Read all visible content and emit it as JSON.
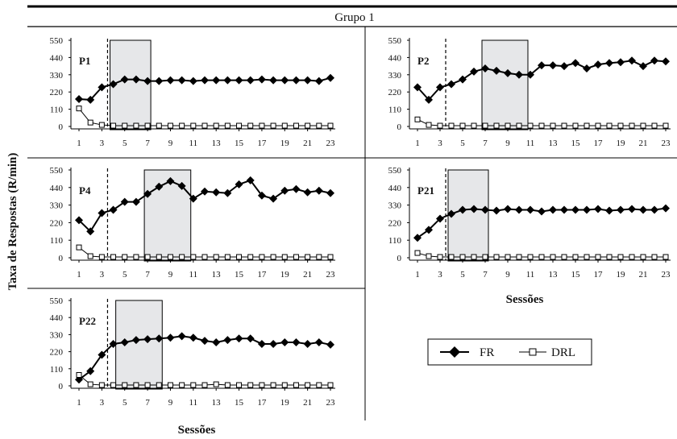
{
  "figure_title": "Grupo 1",
  "ylabel": "Taxa de Respostas (R/min)",
  "xlabel": "Sessões",
  "legend": [
    {
      "name": "FR",
      "marker": "filled-diamond"
    },
    {
      "name": "DRL",
      "marker": "open-square"
    }
  ],
  "colors": {
    "line": "#000000",
    "shade": "#e6e7e9",
    "background": "#ffffff"
  },
  "chart_data": [
    {
      "type": "line",
      "panel": "P1",
      "x": [
        1,
        2,
        3,
        4,
        5,
        6,
        7,
        8,
        9,
        10,
        11,
        12,
        13,
        14,
        15,
        16,
        17,
        18,
        19,
        20,
        21,
        22,
        23
      ],
      "xticks": [
        1,
        3,
        5,
        7,
        9,
        11,
        13,
        15,
        17,
        19,
        21,
        23
      ],
      "yticks": [
        0,
        110,
        220,
        330,
        440,
        550
      ],
      "ylim": [
        0,
        550
      ],
      "phase_line_after_session": 3.5,
      "shaded_sessions": [
        4,
        7
      ],
      "series": [
        {
          "name": "FR",
          "values": [
            175,
            170,
            250,
            270,
            300,
            300,
            290,
            290,
            295,
            295,
            290,
            295,
            295,
            295,
            295,
            295,
            300,
            295,
            295,
            295,
            295,
            290,
            310
          ]
        },
        {
          "name": "DRL",
          "values": [
            115,
            25,
            10,
            5,
            5,
            5,
            5,
            5,
            5,
            5,
            5,
            5,
            5,
            5,
            5,
            5,
            5,
            5,
            5,
            5,
            5,
            5,
            5
          ]
        }
      ]
    },
    {
      "type": "line",
      "panel": "P2",
      "x": [
        1,
        2,
        3,
        4,
        5,
        6,
        7,
        8,
        9,
        10,
        11,
        12,
        13,
        14,
        15,
        16,
        17,
        18,
        19,
        20,
        21,
        22,
        23
      ],
      "xticks": [
        1,
        3,
        5,
        7,
        9,
        11,
        13,
        15,
        17,
        19,
        21,
        23
      ],
      "yticks": [
        0,
        110,
        220,
        330,
        440,
        550
      ],
      "ylim": [
        0,
        550
      ],
      "phase_line_after_session": 3.5,
      "shaded_sessions": [
        7,
        10.5
      ],
      "series": [
        {
          "name": "FR",
          "values": [
            250,
            170,
            250,
            270,
            300,
            350,
            370,
            355,
            340,
            330,
            330,
            390,
            390,
            385,
            405,
            370,
            395,
            405,
            410,
            420,
            385,
            420,
            415
          ]
        },
        {
          "name": "DRL",
          "values": [
            45,
            10,
            5,
            5,
            5,
            5,
            5,
            5,
            5,
            5,
            5,
            5,
            5,
            5,
            5,
            5,
            5,
            5,
            5,
            5,
            5,
            5,
            5
          ]
        }
      ]
    },
    {
      "type": "line",
      "panel": "P4",
      "x": [
        1,
        2,
        3,
        4,
        5,
        6,
        7,
        8,
        9,
        10,
        11,
        12,
        13,
        14,
        15,
        16,
        17,
        18,
        19,
        20,
        21,
        22,
        23
      ],
      "xticks": [
        1,
        3,
        5,
        7,
        9,
        11,
        13,
        15,
        17,
        19,
        21,
        23
      ],
      "yticks": [
        0,
        110,
        220,
        330,
        440,
        550
      ],
      "ylim": [
        0,
        550
      ],
      "phase_line_after_session": 3.5,
      "shaded_sessions": [
        7,
        10.5
      ],
      "series": [
        {
          "name": "FR",
          "values": [
            235,
            165,
            280,
            300,
            350,
            350,
            400,
            445,
            480,
            450,
            370,
            415,
            410,
            405,
            460,
            485,
            390,
            370,
            420,
            430,
            410,
            420,
            405
          ]
        },
        {
          "name": "DRL",
          "values": [
            65,
            10,
            5,
            5,
            5,
            5,
            5,
            5,
            5,
            5,
            5,
            5,
            5,
            5,
            5,
            5,
            5,
            5,
            5,
            5,
            5,
            5,
            5
          ]
        }
      ]
    },
    {
      "type": "line",
      "panel": "P21",
      "x": [
        1,
        2,
        3,
        4,
        5,
        6,
        7,
        8,
        9,
        10,
        11,
        12,
        13,
        14,
        15,
        16,
        17,
        18,
        19,
        20,
        21,
        22,
        23
      ],
      "xticks": [
        1,
        3,
        5,
        7,
        9,
        11,
        13,
        15,
        17,
        19,
        21,
        23
      ],
      "yticks": [
        0,
        110,
        220,
        330,
        440,
        550
      ],
      "ylim": [
        0,
        550
      ],
      "phase_line_after_session": 3.5,
      "shaded_sessions": [
        4,
        7
      ],
      "series": [
        {
          "name": "FR",
          "values": [
            125,
            175,
            245,
            275,
            300,
            305,
            300,
            295,
            305,
            300,
            300,
            290,
            300,
            300,
            300,
            300,
            305,
            295,
            300,
            305,
            300,
            300,
            310
          ]
        },
        {
          "name": "DRL",
          "values": [
            30,
            10,
            5,
            5,
            5,
            5,
            5,
            5,
            5,
            5,
            5,
            5,
            5,
            5,
            5,
            5,
            5,
            5,
            5,
            5,
            5,
            5,
            5
          ]
        }
      ]
    },
    {
      "type": "line",
      "panel": "P22",
      "x": [
        1,
        2,
        3,
        4,
        5,
        6,
        7,
        8,
        9,
        10,
        11,
        12,
        13,
        14,
        15,
        16,
        17,
        18,
        19,
        20,
        21,
        22,
        23
      ],
      "xticks": [
        1,
        3,
        5,
        7,
        9,
        11,
        13,
        15,
        17,
        19,
        21,
        23
      ],
      "yticks": [
        0,
        110,
        220,
        330,
        440,
        550
      ],
      "ylim": [
        0,
        550
      ],
      "phase_line_after_session": 3.5,
      "shaded_sessions": [
        4.5,
        8
      ],
      "series": [
        {
          "name": "FR",
          "values": [
            40,
            95,
            200,
            270,
            280,
            295,
            300,
            305,
            310,
            320,
            310,
            290,
            280,
            295,
            305,
            305,
            270,
            270,
            280,
            280,
            270,
            280,
            265
          ]
        },
        {
          "name": "DRL",
          "values": [
            70,
            10,
            5,
            5,
            5,
            5,
            5,
            5,
            5,
            5,
            5,
            5,
            10,
            5,
            5,
            5,
            5,
            5,
            5,
            5,
            5,
            5,
            5
          ]
        }
      ]
    }
  ]
}
